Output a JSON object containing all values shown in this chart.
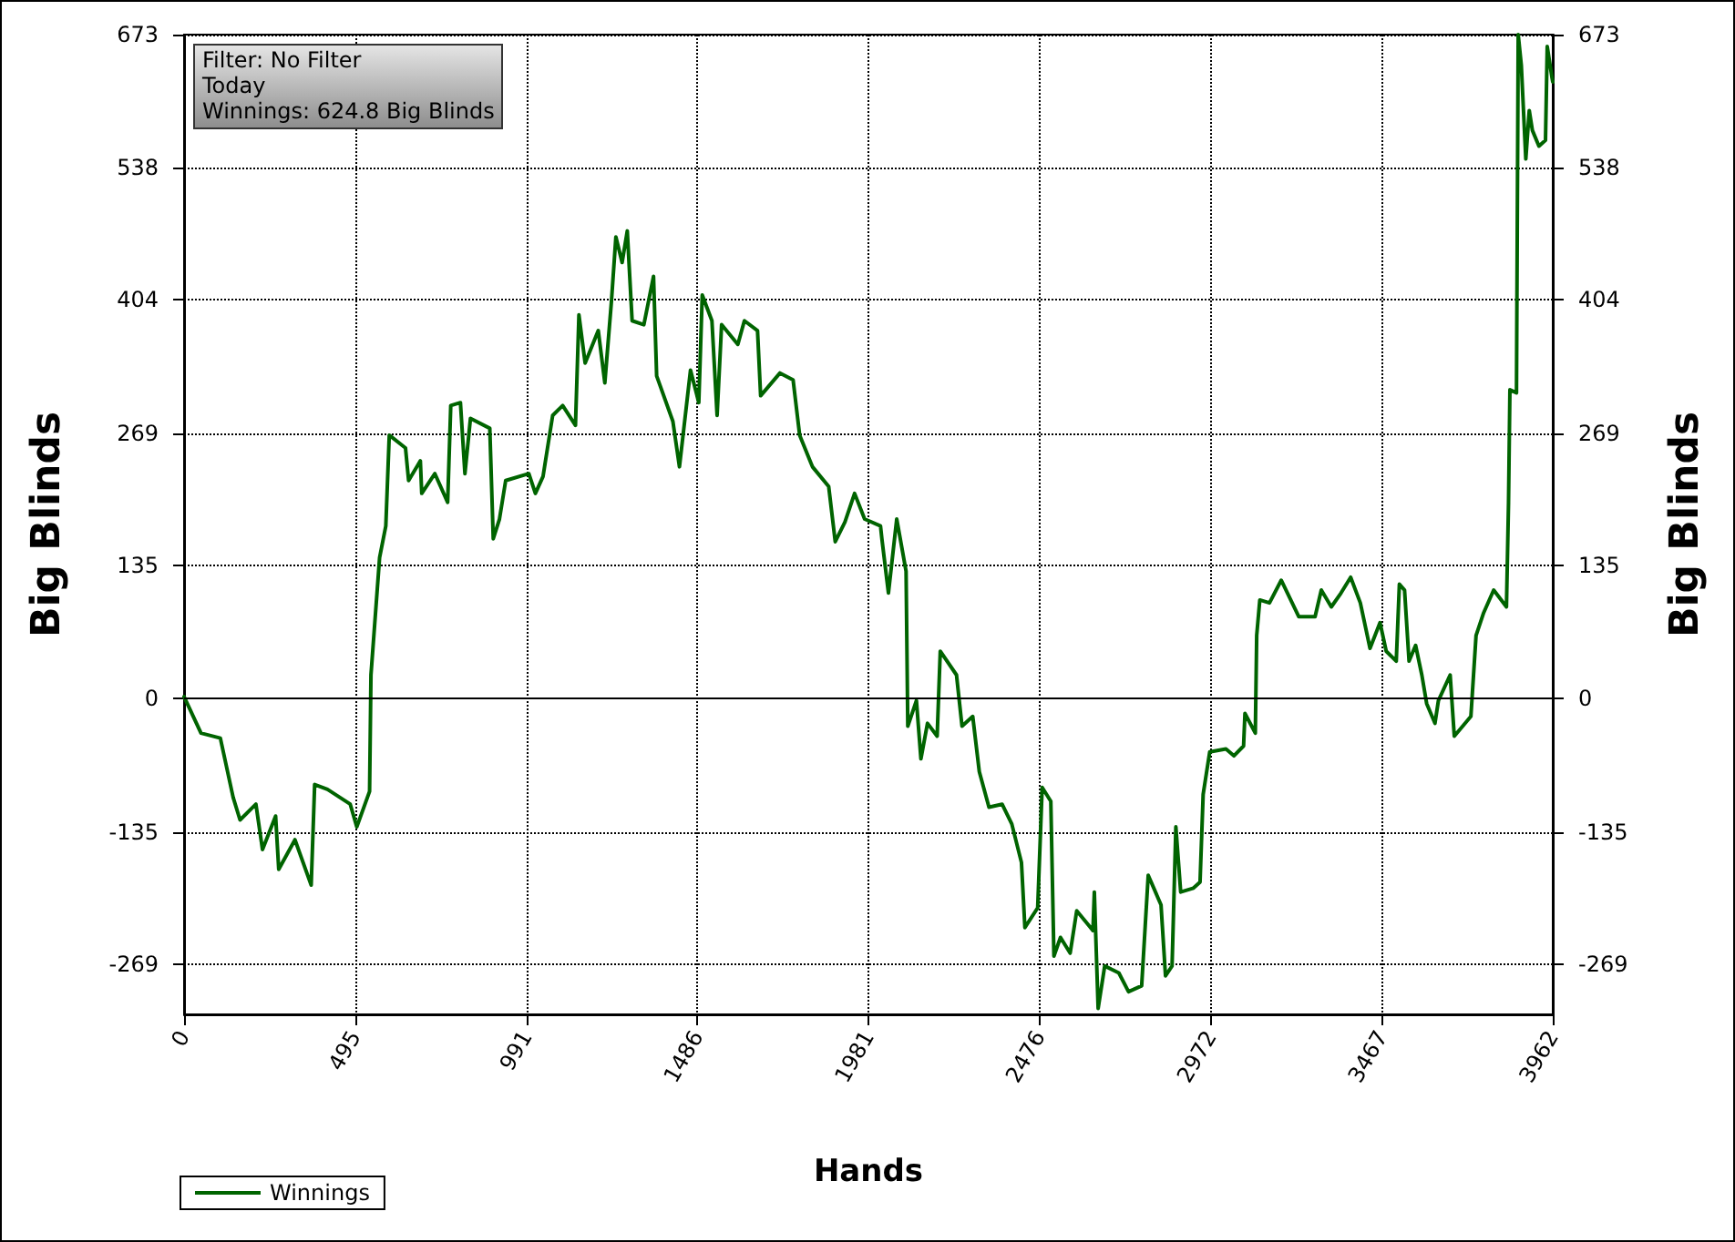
{
  "chart_data": {
    "type": "line",
    "xlabel": "Hands",
    "ylabel": "Big Blinds",
    "y2label": "Big Blinds",
    "annotations": [
      "Filter: No Filter",
      "Today",
      "Winnings: 624.8 Big Blinds"
    ],
    "xlim": [
      0,
      3962
    ],
    "xticks": [
      0,
      495,
      991,
      1486,
      1981,
      2476,
      2972,
      3467,
      3962
    ],
    "ylim": [
      -320,
      673
    ],
    "yticks": [
      -269,
      -135,
      0,
      135,
      269,
      404,
      538,
      673
    ],
    "y2lim": [
      -320,
      673
    ],
    "y2ticks": [
      -269,
      -135,
      0,
      135,
      269,
      404,
      538,
      673
    ],
    "grid": true,
    "legend": "bottom left",
    "marker": "none",
    "line_style": "solid",
    "ref_lines": [
      {
        "axis": "y",
        "value": 0,
        "color": "#000000"
      }
    ],
    "series": [
      {
        "name": "Winnings",
        "color": "#006400",
        "x": [
          0,
          49,
          105,
          142,
          162,
          208,
          227,
          265,
          274,
          321,
          368,
          378,
          415,
          481,
          500,
          537,
          541,
          566,
          584,
          594,
          641,
          650,
          684,
          688,
          726,
          763,
          772,
          800,
          813,
          829,
          885,
          895,
          913,
          931,
          998,
          1017,
          1039,
          1067,
          1096,
          1133,
          1143,
          1161,
          1199,
          1218,
          1237,
          1250,
          1268,
          1283,
          1297,
          1331,
          1359,
          1368,
          1415,
          1434,
          1466,
          1490,
          1500,
          1528,
          1543,
          1556,
          1603,
          1622,
          1660,
          1669,
          1725,
          1763,
          1782,
          1819,
          1866,
          1885,
          1913,
          1941,
          1970,
          2016,
          2020,
          2039,
          2063,
          2090,
          2095,
          2120,
          2133,
          2152,
          2180,
          2189,
          2236,
          2252,
          2283,
          2302,
          2330,
          2368,
          2396,
          2424,
          2434,
          2471,
          2484,
          2509,
          2518,
          2537,
          2565,
          2584,
          2631,
          2635,
          2646,
          2665,
          2706,
          2734,
          2772,
          2791,
          2828,
          2841,
          2860,
          2871,
          2885,
          2922,
          2941,
          2950,
          2969,
          3016,
          3039,
          3067,
          3071,
          3101,
          3105,
          3114,
          3142,
          3176,
          3227,
          3274,
          3292,
          3321,
          3349,
          3377,
          3405,
          3433,
          3462,
          3480,
          3509,
          3518,
          3533,
          3546,
          3565,
          3583,
          3597,
          3621,
          3631,
          3665,
          3677,
          3725,
          3740,
          3762,
          3791,
          3828,
          3834,
          3838,
          3857,
          3862,
          3871,
          3884,
          3894,
          3903,
          3922,
          3941,
          3946,
          3960,
          3962
        ],
        "values": [
          2,
          -35,
          -40,
          -100,
          -123,
          -107,
          -153,
          -119,
          -173,
          -143,
          -189,
          -87,
          -92,
          -107,
          -130,
          -94,
          24,
          143,
          175,
          267,
          254,
          221,
          241,
          208,
          228,
          199,
          297,
          300,
          228,
          284,
          274,
          162,
          182,
          221,
          228,
          208,
          225,
          287,
          297,
          277,
          389,
          340,
          373,
          320,
          402,
          468,
          442,
          474,
          383,
          379,
          428,
          327,
          281,
          235,
          333,
          300,
          409,
          383,
          287,
          379,
          359,
          383,
          373,
          307,
          330,
          323,
          267,
          235,
          215,
          159,
          179,
          208,
          182,
          175,
          162,
          107,
          182,
          129,
          -28,
          -2,
          -61,
          -25,
          -38,
          48,
          24,
          -28,
          -18,
          -74,
          -110,
          -107,
          -127,
          -166,
          -232,
          -212,
          -90,
          -104,
          -261,
          -242,
          -258,
          -215,
          -235,
          -196,
          -314,
          -271,
          -278,
          -297,
          -291,
          -179,
          -209,
          -281,
          -271,
          -130,
          -196,
          -192,
          -186,
          -97,
          -54,
          -51,
          -58,
          -48,
          -15,
          -35,
          64,
          100,
          97,
          120,
          83,
          83,
          110,
          93,
          107,
          123,
          97,
          51,
          77,
          48,
          38,
          116,
          110,
          38,
          54,
          24,
          -5,
          -25,
          -2,
          24,
          -38,
          -18,
          64,
          87,
          110,
          93,
          199,
          313,
          310,
          673,
          642,
          547,
          596,
          576,
          560,
          566,
          661,
          629,
          625
        ]
      }
    ]
  }
}
